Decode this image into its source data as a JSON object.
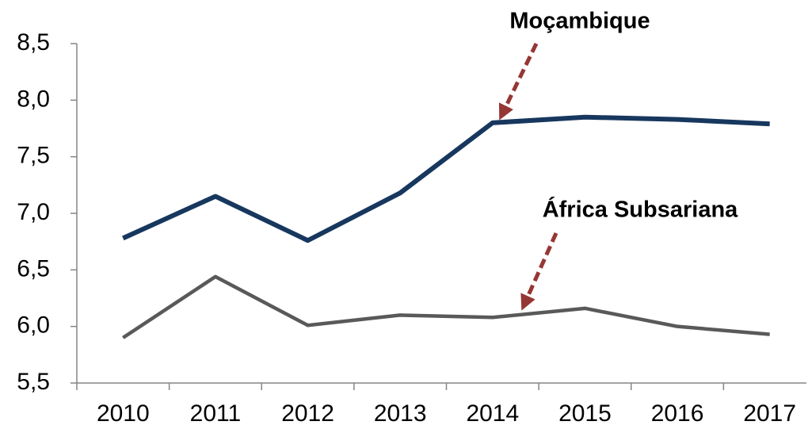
{
  "chart_data": {
    "type": "line",
    "categories": [
      "2010",
      "2011",
      "2012",
      "2013",
      "2014",
      "2015",
      "2016",
      "2017"
    ],
    "series": [
      {
        "name": "Moçambique",
        "color": "#17375e",
        "values": [
          6.78,
          7.15,
          6.76,
          7.18,
          7.8,
          7.85,
          7.83,
          7.79
        ]
      },
      {
        "name": "África Subsariana",
        "color": "#595959",
        "values": [
          5.9,
          6.44,
          6.01,
          6.1,
          6.08,
          6.16,
          6.0,
          5.93
        ]
      }
    ],
    "ylim": [
      5.5,
      8.5
    ],
    "yticks": [
      {
        "value": 5.5,
        "label": "5,5"
      },
      {
        "value": 6.0,
        "label": "6,0"
      },
      {
        "value": 6.5,
        "label": "6,5"
      },
      {
        "value": 7.0,
        "label": "7,0"
      },
      {
        "value": 7.5,
        "label": "7,5"
      },
      {
        "value": 8.0,
        "label": "8,0"
      },
      {
        "value": 8.5,
        "label": "8,5"
      }
    ],
    "grid": false,
    "legend": false
  }
}
